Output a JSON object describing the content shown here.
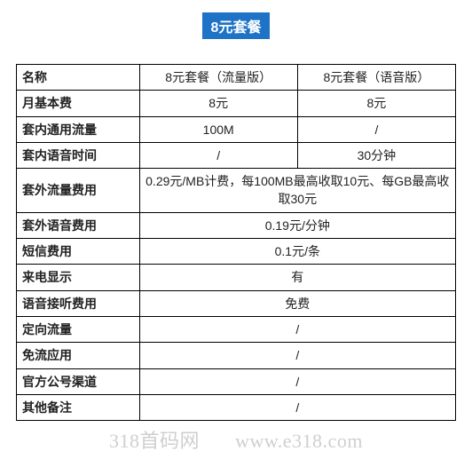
{
  "title": "8元套餐",
  "colwidths": {
    "label": "28%",
    "c1": "36%",
    "c2": "36%"
  },
  "header": {
    "label": "名称",
    "c1": "8元套餐（流量版）",
    "c2": "8元套餐（语音版）"
  },
  "rows": [
    {
      "label": "月基本费",
      "c1": "8元",
      "c2": "8元"
    },
    {
      "label": "套内通用流量",
      "c1": "100M",
      "c2": "/"
    },
    {
      "label": "套内语音时间",
      "c1": "/",
      "c2": "30分钟"
    },
    {
      "label": "套外流量费用",
      "span": "0.29元/MB计费，每100MB最高收取10元、每GB最高收取30元"
    },
    {
      "label": "套外语音费用",
      "span": "0.19元/分钟"
    },
    {
      "label": "短信费用",
      "span": "0.1元/条"
    },
    {
      "label": "来电显示",
      "span": "有"
    },
    {
      "label": "语音接听费用",
      "span": "免费"
    },
    {
      "label": "定向流量",
      "span": "/"
    },
    {
      "label": "免流应用",
      "span": "/"
    },
    {
      "label": "官方公号渠道",
      "span": "/"
    },
    {
      "label": "其他备注",
      "span": "/"
    }
  ],
  "watermark": {
    "left": "318首码网",
    "right": "www.e318.com"
  },
  "colors": {
    "title_bg": "#1e73c7",
    "title_fg": "#ffffff",
    "border": "#000000",
    "text": "#222222",
    "wm": "#cfcfcf"
  }
}
